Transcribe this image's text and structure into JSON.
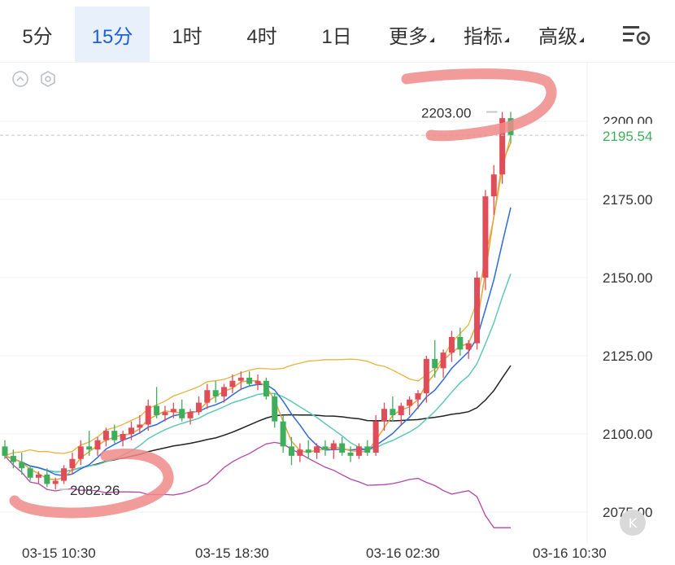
{
  "tabs": [
    {
      "label": "5分"
    },
    {
      "label": "15分",
      "active": true
    },
    {
      "label": "1时"
    },
    {
      "label": "4时"
    },
    {
      "label": "1日"
    },
    {
      "label": "更多",
      "dropdown": true
    },
    {
      "label": "指标",
      "dropdown": true
    },
    {
      "label": "高级",
      "dropdown": true
    }
  ],
  "settings_icon": "chart-settings-icon",
  "controls": {
    "collapse_icon": "chevron-up-circle-icon",
    "settings_icon": "hexagon-settings-icon"
  },
  "k_button": "K",
  "colors": {
    "up": "#e04c58",
    "down": "#3fae5c",
    "ma_fast": "#e6a23c",
    "ma_mid": "#2f6bd8",
    "ma_slow": "#5ec9b8",
    "ma_long": "#222222",
    "bb": "#e6b43c",
    "indicator": "#b545a8",
    "annotation": "#f08a8a",
    "active_tab": "#1f5fd6"
  },
  "chart_data": {
    "type": "candlestick",
    "y_ticks": [
      "2200.00",
      "2175.00",
      "2150.00",
      "2125.00",
      "2100.00",
      "2075.00"
    ],
    "y_tick_values": [
      2200,
      2175,
      2150,
      2125,
      2100,
      2075
    ],
    "ylim": [
      2068,
      2212
    ],
    "x_ticks": [
      "03-15 10:30",
      "03-15 18:30",
      "03-16 02:30",
      "03-16 10:30"
    ],
    "current_price": "2195.54",
    "current_value": 2195.54,
    "high_label": "2203.00",
    "high_value": 2203.0,
    "low_label": "2082.26",
    "low_value": 2082.26,
    "candles": [
      [
        2096,
        2098,
        2092,
        2093
      ],
      [
        2093,
        2095,
        2089,
        2091
      ],
      [
        2091,
        2094,
        2087,
        2089
      ],
      [
        2089,
        2090,
        2085,
        2086
      ],
      [
        2086,
        2088,
        2084,
        2087
      ],
      [
        2087,
        2089,
        2083,
        2084
      ],
      [
        2084,
        2086,
        2082.26,
        2085
      ],
      [
        2085,
        2090,
        2084,
        2089
      ],
      [
        2089,
        2094,
        2087,
        2092
      ],
      [
        2092,
        2098,
        2090,
        2096
      ],
      [
        2096,
        2101,
        2093,
        2095
      ],
      [
        2095,
        2099,
        2093,
        2098
      ],
      [
        2098,
        2102,
        2096,
        2101
      ],
      [
        2101,
        2103,
        2097,
        2098
      ],
      [
        2098,
        2101,
        2096,
        2100
      ],
      [
        2100,
        2104,
        2098,
        2102
      ],
      [
        2102,
        2106,
        2100,
        2103
      ],
      [
        2103,
        2111,
        2101,
        2109
      ],
      [
        2109,
        2115,
        2105,
        2106
      ],
      [
        2106,
        2109,
        2104,
        2107
      ],
      [
        2107,
        2110,
        2105,
        2108
      ],
      [
        2108,
        2111,
        2104,
        2105
      ],
      [
        2105,
        2108,
        2103,
        2107
      ],
      [
        2107,
        2112,
        2106,
        2110
      ],
      [
        2110,
        2116,
        2108,
        2114
      ],
      [
        2114,
        2117,
        2110,
        2112
      ],
      [
        2112,
        2116,
        2110,
        2115
      ],
      [
        2115,
        2119,
        2113,
        2117
      ],
      [
        2117,
        2120,
        2114,
        2118
      ],
      [
        2118,
        2120,
        2115,
        2116
      ],
      [
        2116,
        2119,
        2114,
        2117
      ],
      [
        2117,
        2118,
        2111,
        2112
      ],
      [
        2112,
        2113,
        2102,
        2104
      ],
      [
        2104,
        2106,
        2094,
        2096
      ],
      [
        2096,
        2099,
        2090,
        2093
      ],
      [
        2093,
        2097,
        2091,
        2095
      ],
      [
        2095,
        2098,
        2092,
        2094
      ],
      [
        2094,
        2097,
        2092,
        2096
      ],
      [
        2096,
        2098,
        2093,
        2095
      ],
      [
        2095,
        2098,
        2092,
        2097
      ],
      [
        2097,
        2099,
        2093,
        2094
      ],
      [
        2094,
        2096,
        2091,
        2093
      ],
      [
        2093,
        2097,
        2092,
        2096
      ],
      [
        2096,
        2098,
        2093,
        2094
      ],
      [
        2094,
        2106,
        2093,
        2104
      ],
      [
        2104,
        2110,
        2101,
        2108
      ],
      [
        2108,
        2112,
        2104,
        2106
      ],
      [
        2106,
        2110,
        2103,
        2109
      ],
      [
        2109,
        2112,
        2106,
        2111
      ],
      [
        2111,
        2114,
        2108,
        2113
      ],
      [
        2113,
        2125,
        2110,
        2124
      ],
      [
        2124,
        2130,
        2118,
        2121
      ],
      [
        2121,
        2127,
        2118,
        2126
      ],
      [
        2126,
        2133,
        2123,
        2131
      ],
      [
        2131,
        2134,
        2125,
        2127
      ],
      [
        2127,
        2130,
        2124,
        2129
      ],
      [
        2129,
        2152,
        2127,
        2150
      ],
      [
        2150,
        2178,
        2146,
        2176
      ],
      [
        2176,
        2186,
        2170,
        2183
      ],
      [
        2183,
        2203,
        2180,
        2201
      ],
      [
        2201,
        2203,
        2193,
        2195.54
      ]
    ]
  }
}
